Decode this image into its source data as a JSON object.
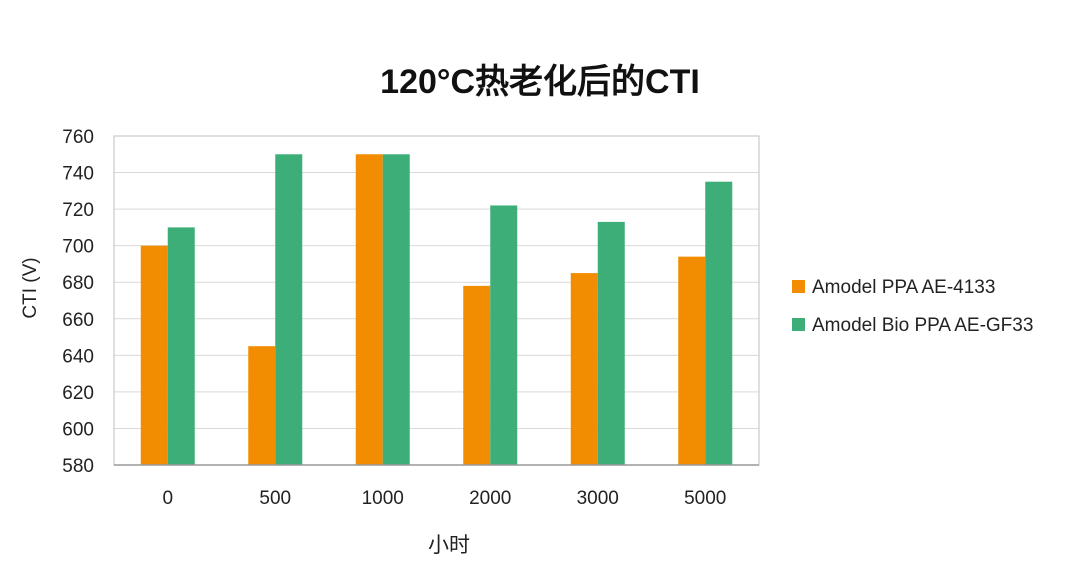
{
  "chart_data": {
    "type": "bar",
    "title": "120°C热老化后的CTI",
    "xlabel": "小时",
    "ylabel": "CTI (V)",
    "categories": [
      "0",
      "500",
      "1000",
      "2000",
      "3000",
      "5000"
    ],
    "ylim": [
      580,
      760
    ],
    "yticks": [
      580,
      600,
      620,
      640,
      660,
      680,
      700,
      720,
      740,
      760
    ],
    "grid": true,
    "legend_position": "right",
    "series": [
      {
        "name": "Amodel PPA AE-4133",
        "color": "#F28C00",
        "values": [
          700,
          645,
          750,
          678,
          685,
          694
        ]
      },
      {
        "name": "Amodel Bio PPA AE-GF33",
        "color": "#3DAE78",
        "values": [
          710,
          750,
          750,
          722,
          713,
          735
        ]
      }
    ]
  }
}
